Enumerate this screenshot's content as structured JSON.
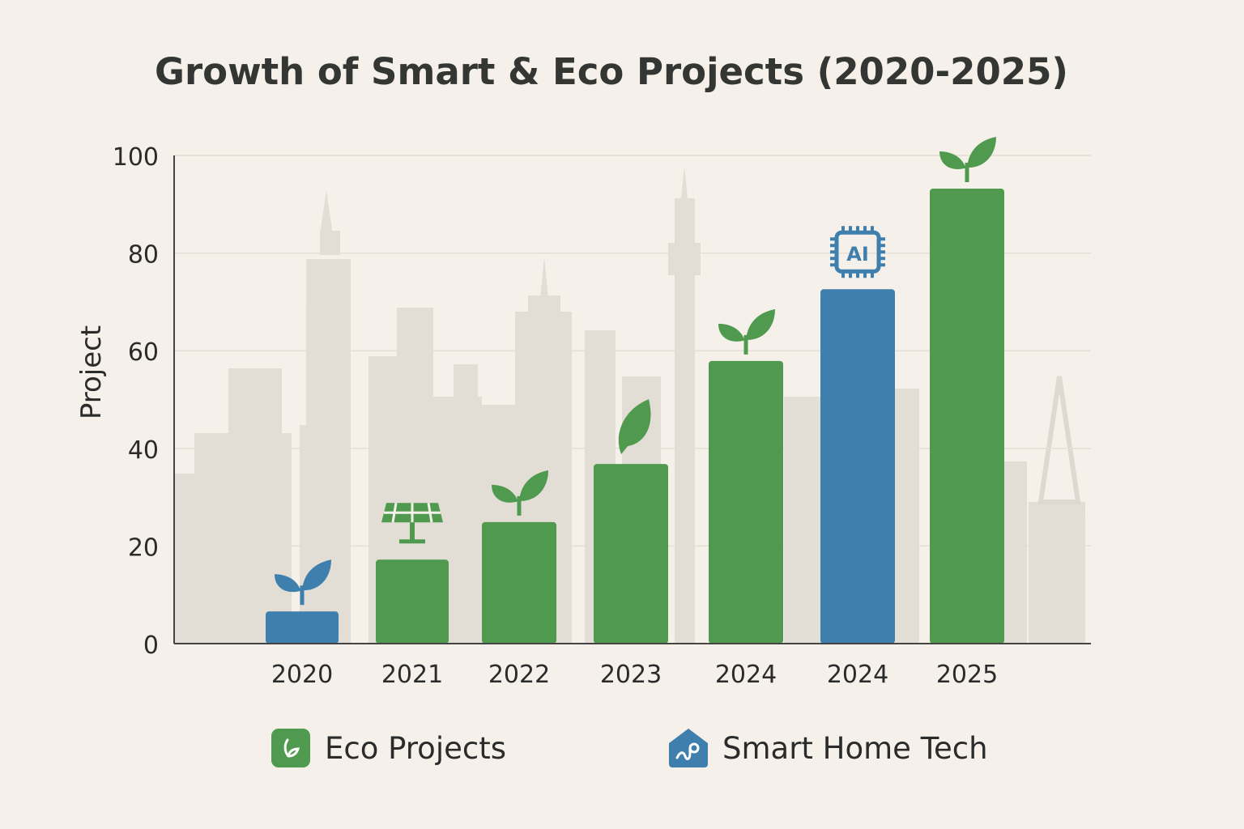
{
  "chart_data": {
    "type": "bar",
    "title": "Growth of Smart & Eco Projects (2020-2025)",
    "xlabel": "",
    "ylabel": "Project",
    "ylim": [
      0,
      100
    ],
    "yticks": [
      0,
      20,
      40,
      60,
      80,
      100
    ],
    "grid": true,
    "legend_placement": "bottom",
    "categories": [
      "2020",
      "2021",
      "2022",
      "2023",
      "2024",
      "2024",
      "2025"
    ],
    "bars": [
      {
        "category": "2020",
        "value": 6.6,
        "series": "Smart Home Tech",
        "icon": "sprout-icon"
      },
      {
        "category": "2021",
        "value": 17.2,
        "series": "Eco Projects",
        "icon": "solar-panel-icon"
      },
      {
        "category": "2022",
        "value": 24.9,
        "series": "Eco Projects",
        "icon": "sprout-icon"
      },
      {
        "category": "2023",
        "value": 36.8,
        "series": "Eco Projects",
        "icon": "leaf-icon"
      },
      {
        "category": "2024",
        "value": 57.9,
        "series": "Eco Projects",
        "icon": "sprout-icon"
      },
      {
        "category": "2024",
        "value": 72.6,
        "series": "Smart Home Tech",
        "icon": "ai-chip-icon"
      },
      {
        "category": "2025",
        "value": 93.2,
        "series": "Eco Projects",
        "icon": "sprout-icon"
      }
    ],
    "series": [
      {
        "name": "Eco Projects",
        "color": "#4f9a4f",
        "icon": "leaf-badge-icon"
      },
      {
        "name": "Smart Home Tech",
        "color": "#3f7fad",
        "icon": "smart-home-icon"
      }
    ],
    "background": "city-skyline"
  }
}
